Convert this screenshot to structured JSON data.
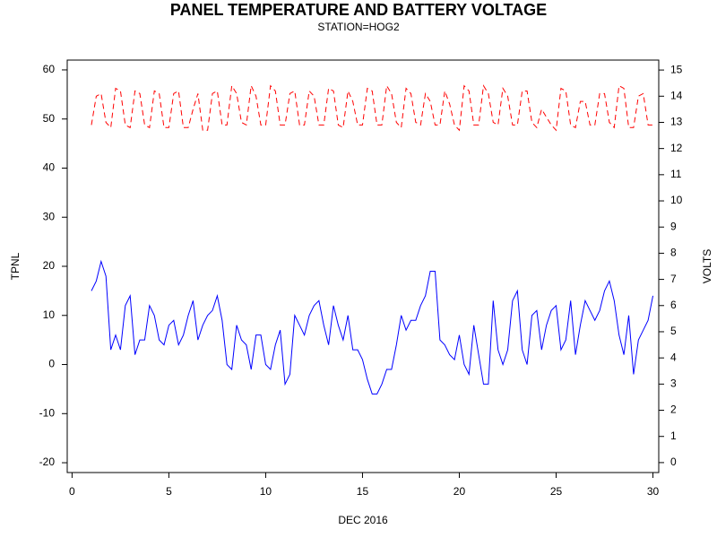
{
  "chart_data": {
    "type": "line",
    "title": "PANEL TEMPERATURE AND BATTERY VOLTAGE",
    "subtitle": "STATION=HOG2",
    "xlabel": "DEC 2016",
    "ylabel": "TPNL",
    "y2label": "VOLTS",
    "xlim": [
      -0.25,
      30.3
    ],
    "xticks": [
      0,
      5,
      10,
      15,
      20,
      25,
      30
    ],
    "ylim": [
      -22,
      62
    ],
    "yticks": [
      -20,
      -10,
      0,
      10,
      20,
      30,
      40,
      50,
      60
    ],
    "y2lim": [
      -0.38,
      15.38
    ],
    "y2ticks": [
      0,
      1,
      2,
      3,
      4,
      5,
      6,
      7,
      8,
      9,
      10,
      11,
      12,
      13,
      14,
      15
    ],
    "x": [
      1,
      1.25,
      1.5,
      1.75,
      2,
      2.25,
      2.5,
      2.75,
      3,
      3.25,
      3.5,
      3.75,
      4,
      4.25,
      4.5,
      4.75,
      5,
      5.25,
      5.5,
      5.75,
      6,
      6.25,
      6.5,
      6.75,
      7,
      7.25,
      7.5,
      7.75,
      8,
      8.25,
      8.5,
      8.75,
      9,
      9.25,
      9.5,
      9.75,
      10,
      10.25,
      10.5,
      10.75,
      11,
      11.25,
      11.5,
      11.75,
      12,
      12.25,
      12.5,
      12.75,
      13,
      13.25,
      13.5,
      13.75,
      14,
      14.25,
      14.5,
      14.75,
      15,
      15.25,
      15.5,
      15.75,
      16,
      16.25,
      16.5,
      16.75,
      17,
      17.25,
      17.5,
      17.75,
      18,
      18.25,
      18.5,
      18.75,
      19,
      19.25,
      19.5,
      19.75,
      20,
      20.25,
      20.5,
      20.75,
      21,
      21.25,
      21.5,
      21.75,
      22,
      22.25,
      22.5,
      22.75,
      23,
      23.25,
      23.5,
      23.75,
      24,
      24.25,
      24.5,
      24.75,
      25,
      25.25,
      25.5,
      25.75,
      26,
      26.25,
      26.5,
      26.75,
      27,
      27.25,
      27.5,
      27.75,
      28,
      28.25,
      28.5,
      28.75,
      29,
      29.25,
      29.5,
      29.75,
      30
    ],
    "series": [
      {
        "name": "TPNL",
        "color": "#0000ff",
        "style": "solid",
        "values": [
          15,
          17,
          21,
          18,
          3,
          6,
          3,
          12,
          14,
          2,
          5,
          5,
          12,
          10,
          5,
          4,
          8,
          9,
          4,
          6,
          10,
          13,
          5,
          8,
          10,
          11,
          14,
          9,
          0,
          -1,
          8,
          5,
          4,
          -1,
          6,
          6,
          0,
          -1,
          4,
          7,
          -4,
          -2,
          10,
          8,
          6,
          10,
          12,
          13,
          8,
          4,
          12,
          8,
          5,
          10,
          3,
          3,
          1,
          -3,
          -6,
          -6,
          -4,
          -1,
          -1,
          4,
          10,
          7,
          9,
          9,
          12,
          14,
          19,
          19,
          5,
          4,
          2,
          1,
          6,
          0,
          -2,
          8,
          2,
          -4,
          -4,
          13,
          3,
          0,
          3,
          13,
          15,
          3,
          0,
          10,
          11,
          3,
          8,
          11,
          12,
          3,
          5,
          13,
          2,
          8,
          13,
          11,
          9,
          11,
          15,
          17,
          13,
          6,
          2,
          10,
          -2,
          5,
          7,
          9,
          14
        ]
      },
      {
        "name": "VOLTS",
        "color": "#ff0000",
        "style": "dashed",
        "axis": "y2",
        "values": [
          12.9,
          14.0,
          14.1,
          13.0,
          12.8,
          14.3,
          14.2,
          12.9,
          12.8,
          14.2,
          14.1,
          12.9,
          12.8,
          14.2,
          14.1,
          12.8,
          12.8,
          14.1,
          14.2,
          12.8,
          12.8,
          13.5,
          14.1,
          12.7,
          12.7,
          14.1,
          14.2,
          12.9,
          12.9,
          14.4,
          14.1,
          13.0,
          12.9,
          14.4,
          14.0,
          12.9,
          12.9,
          14.4,
          14.2,
          12.9,
          12.9,
          14.1,
          14.2,
          12.9,
          12.9,
          14.2,
          14.0,
          12.9,
          12.9,
          14.3,
          14.2,
          12.9,
          12.8,
          14.2,
          13.8,
          12.9,
          12.9,
          14.3,
          14.2,
          12.9,
          12.9,
          14.4,
          14.1,
          13.0,
          12.8,
          14.3,
          14.1,
          13.0,
          12.9,
          14.1,
          13.8,
          12.9,
          12.9,
          14.2,
          13.7,
          12.9,
          12.7,
          14.4,
          14.2,
          12.9,
          12.9,
          14.4,
          14.1,
          13.0,
          12.9,
          14.3,
          14.0,
          12.9,
          12.9,
          14.2,
          14.2,
          13.0,
          12.8,
          13.5,
          13.2,
          12.9,
          12.7,
          14.3,
          14.2,
          12.9,
          12.8,
          13.8,
          13.8,
          12.9,
          12.9,
          14.1,
          14.1,
          13.0,
          12.8,
          14.4,
          14.3,
          12.8,
          12.8,
          14.0,
          14.1,
          12.9,
          12.9
        ]
      }
    ]
  }
}
